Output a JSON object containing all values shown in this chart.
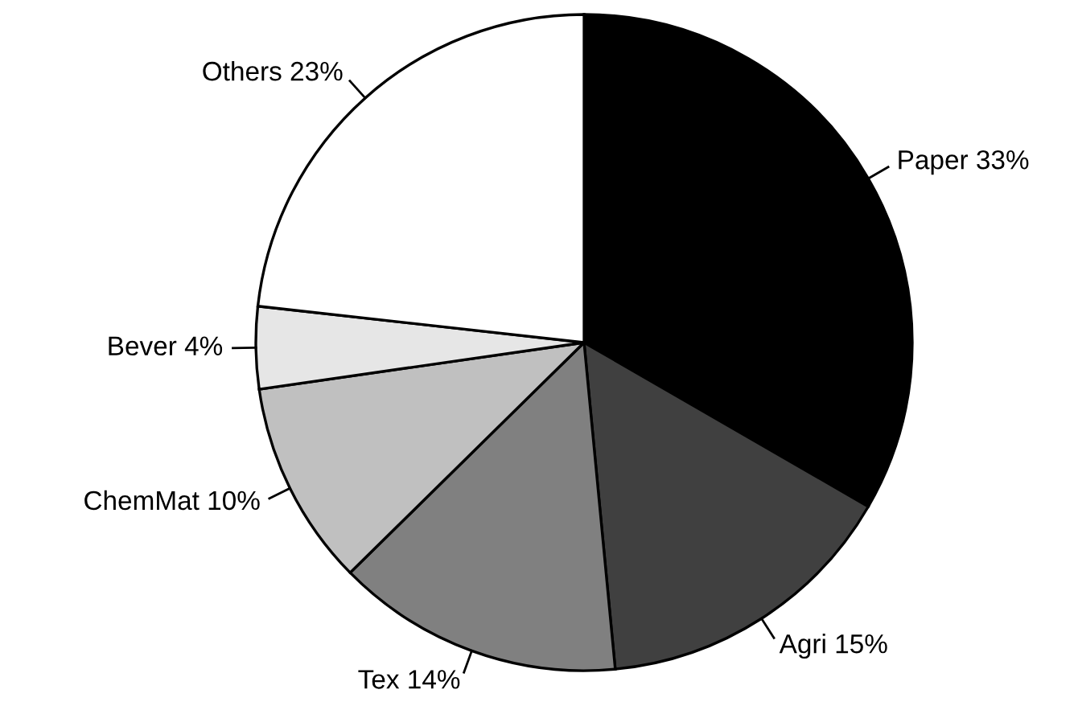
{
  "chart_data": {
    "type": "pie",
    "categories": [
      "Paper",
      "Agri",
      "Tex",
      "ChemMat",
      "Bever",
      "Others"
    ],
    "values": [
      33,
      15,
      14,
      10,
      4,
      23
    ],
    "value_labels": [
      "33%",
      "15%",
      "14%",
      "10%",
      "4%",
      "23%"
    ],
    "colors": [
      "#000000",
      "#404040",
      "#808080",
      "#c0c0c0",
      "#e6e6e6",
      "#ffffff"
    ]
  }
}
